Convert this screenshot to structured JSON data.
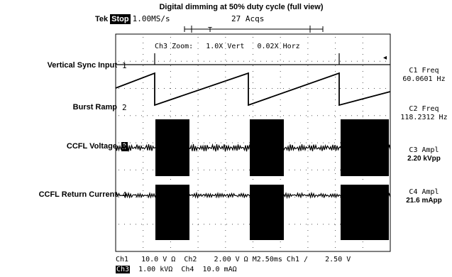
{
  "title": "Digital dimming at 50% duty cycle (full view)",
  "header": {
    "brand": "Tek",
    "run_state": "Stop",
    "sample_rate": "1.00MS/s",
    "acquisitions": "27 Acqs"
  },
  "zoom_readout": {
    "label": "Ch3 Zoom:",
    "vert": "1.0X Vert",
    "horz": "0.02X Horz"
  },
  "channels": [
    {
      "label": "Vertical Sync Input",
      "marker": "1"
    },
    {
      "label": "Burst Ramp",
      "marker": "2"
    },
    {
      "label": "CCFL Voltage",
      "marker": "3"
    },
    {
      "label": "CCFL Return Current",
      "marker": "4"
    }
  ],
  "measurements": [
    {
      "name": "C1 Freq",
      "value": "60.0601 Hz"
    },
    {
      "name": "C2 Freq",
      "value": "118.2312 Hz"
    },
    {
      "name": "C3 Ampl",
      "value": "2.20 kVpp"
    },
    {
      "name": "C4 Ampl",
      "value": "21.6 mApp"
    }
  ],
  "footer": {
    "row1": {
      "ch1": "Ch1",
      "ch1_scale": "10.0 V",
      "ch1_coupling": "Ω",
      "ch2": "Ch2",
      "ch2_scale": "2.00 V",
      "ch2_coupling": "Ω",
      "timebase": "M2.50ms",
      "trigger_source": "Ch1",
      "trigger_slope": "/",
      "trigger_level": "2.50 V"
    },
    "row2": {
      "ch3": "Ch3",
      "ch3_scale": "1.00 kV",
      "ch3_coupling": "Ω",
      "ch4": "Ch4",
      "ch4_scale": "10.0 mA",
      "ch4_coupling": "Ω"
    }
  },
  "colors": {
    "trace": "#000000",
    "grid": "#555555",
    "background": "#ffffff"
  }
}
